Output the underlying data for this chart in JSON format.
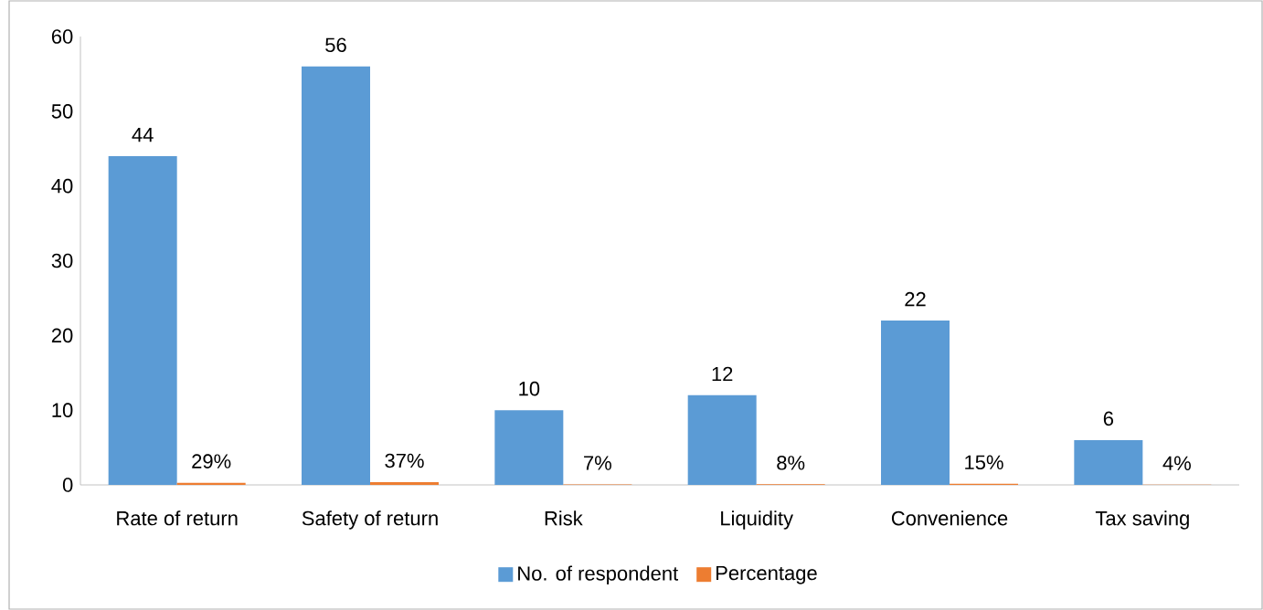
{
  "chart_data": {
    "type": "bar",
    "categories": [
      "Rate of return",
      "Safety of return",
      "Risk",
      "Liquidity",
      "Convenience",
      "Tax saving"
    ],
    "series": [
      {
        "name": "No. of respondent",
        "color": "#5b9bd5",
        "values": [
          44,
          56,
          10,
          12,
          22,
          6
        ],
        "value_labels": [
          "44",
          "56",
          "10",
          "12",
          "22",
          "6"
        ]
      },
      {
        "name": "Percentage",
        "color": "#ed7d31",
        "values": [
          0.29,
          0.37,
          0.07,
          0.08,
          0.15,
          0.04
        ],
        "value_labels": [
          "29%",
          "37%",
          "7%",
          "8%",
          "15%",
          "4%"
        ]
      }
    ],
    "ylim": [
      0,
      60
    ],
    "yticks": [
      0,
      10,
      20,
      30,
      40,
      50,
      60
    ],
    "legend": "bottom"
  }
}
